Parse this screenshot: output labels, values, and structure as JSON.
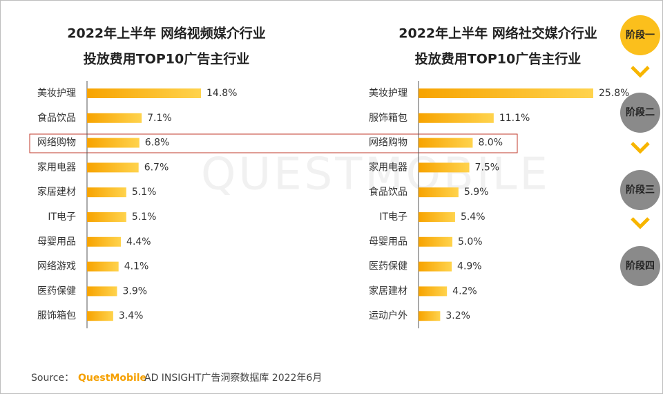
{
  "chart_data": [
    {
      "type": "bar",
      "orientation": "horizontal",
      "title": "2022年上半年 网络视频媒介行业",
      "subtitle": "投放费用TOP10广告主行业",
      "categories": [
        "美妆护理",
        "食品饮品",
        "网络购物",
        "家用电器",
        "家居建材",
        "IT电子",
        "母婴用品",
        "网络游戏",
        "医药保健",
        "服饰箱包"
      ],
      "values": [
        14.8,
        7.1,
        6.8,
        6.7,
        5.1,
        5.1,
        4.4,
        4.1,
        3.9,
        3.4
      ],
      "value_labels": [
        "14.8%",
        "7.1%",
        "6.8%",
        "6.7%",
        "5.1%",
        "5.1%",
        "4.4%",
        "4.1%",
        "3.9%",
        "3.4%"
      ],
      "color": "#fbbf1c"
    },
    {
      "type": "bar",
      "orientation": "horizontal",
      "title": "2022年上半年 网络社交媒介行业",
      "subtitle": "投放费用TOP10广告主行业",
      "categories": [
        "美妆护理",
        "服饰箱包",
        "网络购物",
        "家用电器",
        "食品饮品",
        "IT电子",
        "母婴用品",
        "医药保健",
        "家居建材",
        "运动户外"
      ],
      "values": [
        25.8,
        11.1,
        8.0,
        7.5,
        5.9,
        5.4,
        5.0,
        4.9,
        4.2,
        3.2
      ],
      "value_labels": [
        "25.8%",
        "11.1%",
        "8.0%",
        "7.5%",
        "5.9%",
        "5.4%",
        "5.0%",
        "4.9%",
        "4.2%",
        "3.2%"
      ],
      "color": "#fbbf1c"
    }
  ],
  "watermark": "QUESTMOBILE",
  "stages": [
    "阶段一",
    "阶段二",
    "阶段三",
    "阶段四"
  ],
  "source": {
    "label": "Source：",
    "brand": "QuestMobile",
    "text": "AD INSIGHT广告洞察数据库 2022年6月"
  }
}
